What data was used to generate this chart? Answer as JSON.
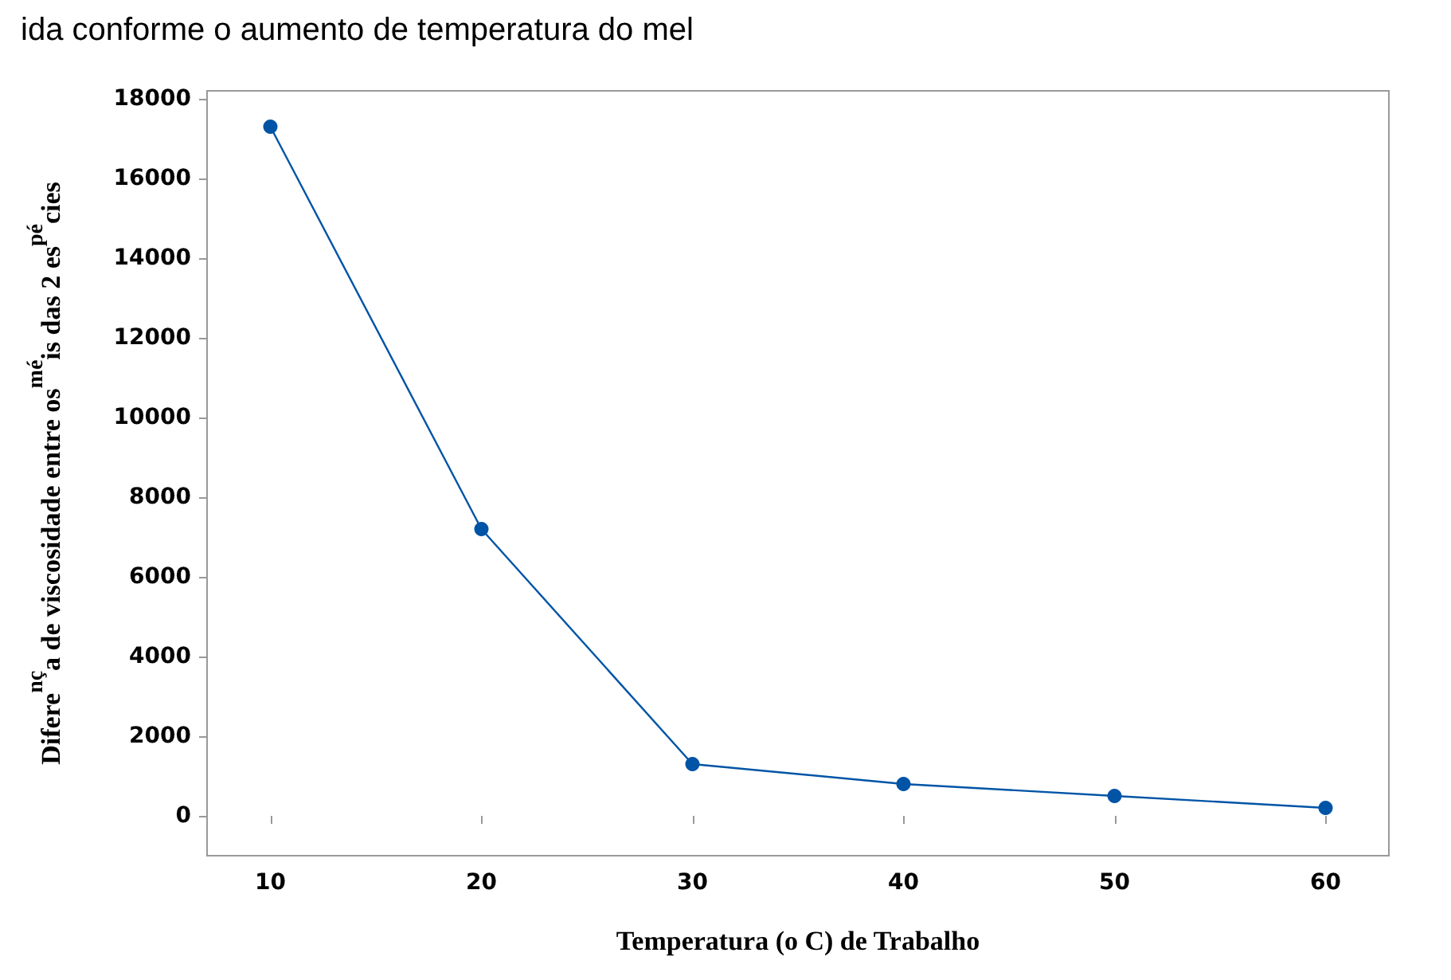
{
  "chart_data": {
    "type": "line",
    "title": "ida conforme o aumento de temperatura do mel",
    "xlabel": "Temperatura (o C) de Trabalho",
    "ylabel": "Difere$^{nç}$a de viscosidade entre os$^{mé}$is das 2 es$^{pé}$cies",
    "x": [
      10,
      20,
      30,
      40,
      50,
      60
    ],
    "series": [
      {
        "color": "#0054a6",
        "values": [
          17300,
          7200,
          1300,
          800,
          500,
          200
        ]
      }
    ],
    "xlim": [
      7,
      63
    ],
    "xticks": [
      10,
      20,
      30,
      40,
      50,
      60
    ],
    "ylim": [
      -1000,
      18200
    ],
    "yticks": [
      0,
      2000,
      4000,
      6000,
      8000,
      10000,
      12000,
      14000,
      16000,
      18000
    ],
    "grid": false,
    "marker": "circle",
    "line_style": "solid"
  }
}
